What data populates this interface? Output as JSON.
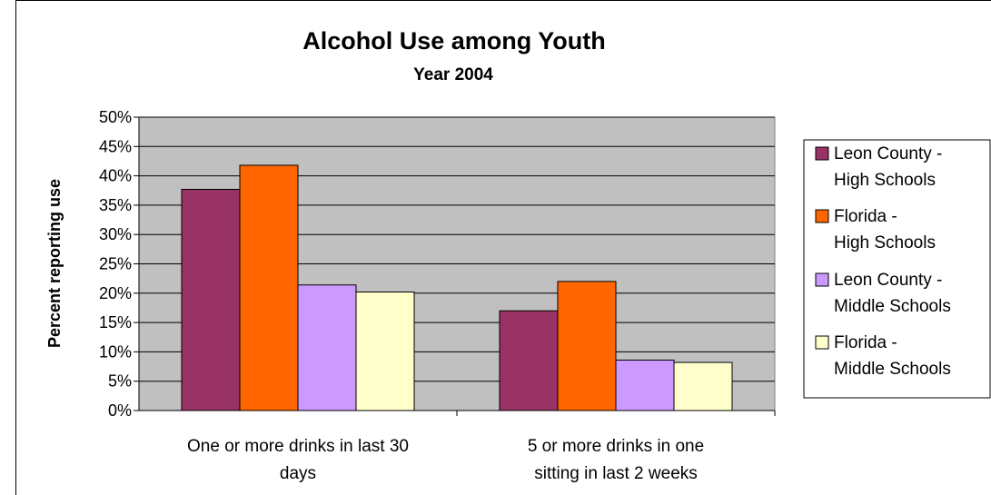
{
  "chart_data": {
    "type": "bar",
    "title": "Alcohol Use among Youth",
    "subtitle": "Year 2004",
    "ylabel": "Percent reporting use",
    "xlabel": "",
    "ylim": [
      0,
      50
    ],
    "y_ticks": [
      "0%",
      "5%",
      "10%",
      "15%",
      "20%",
      "25%",
      "30%",
      "35%",
      "40%",
      "45%",
      "50%"
    ],
    "categories": [
      [
        "One or more drinks in last 30",
        "days"
      ],
      [
        "5 or more drinks in one",
        "sitting in last 2 weeks"
      ]
    ],
    "series": [
      {
        "name": [
          "Leon County -",
          "High Schools"
        ],
        "values": [
          37.7,
          17.0
        ],
        "color": "#993366"
      },
      {
        "name": [
          "Florida -",
          "High Schools"
        ],
        "values": [
          41.8,
          22.0
        ],
        "color": "#FF6600"
      },
      {
        "name": [
          "Leon County -",
          "Middle Schools"
        ],
        "values": [
          21.4,
          8.6
        ],
        "color": "#CC99FF"
      },
      {
        "name": [
          "Florida -",
          "Middle Schools"
        ],
        "values": [
          20.2,
          8.2
        ],
        "color": "#FFFFCC"
      }
    ],
    "plot_background": "#C0C0C0",
    "grid": true,
    "legend_position": "right"
  }
}
